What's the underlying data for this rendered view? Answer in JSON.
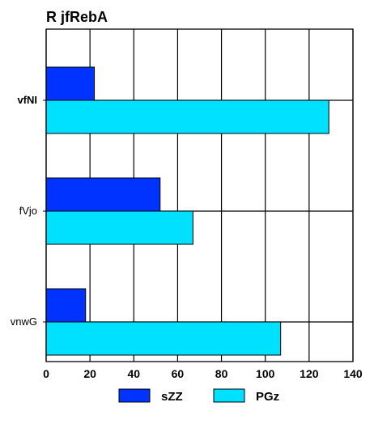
{
  "chart_data": {
    "type": "bar",
    "orientation": "horizontal",
    "title": "R jfRebA",
    "xlabel": "",
    "ylabel": "",
    "categories": [
      "vfNI",
      "fVjo",
      "vnwG"
    ],
    "series": [
      {
        "name": "sZZ",
        "values": [
          22,
          52,
          18
        ],
        "color": "#0033ff"
      },
      {
        "name": "PGz",
        "values": [
          129,
          67,
          107
        ],
        "color": "#00e0ff"
      }
    ],
    "xlim": [
      0,
      140
    ],
    "xticks": [
      0,
      20,
      40,
      60,
      80,
      100,
      120,
      140
    ],
    "grid": true,
    "legend_position": "bottom"
  }
}
